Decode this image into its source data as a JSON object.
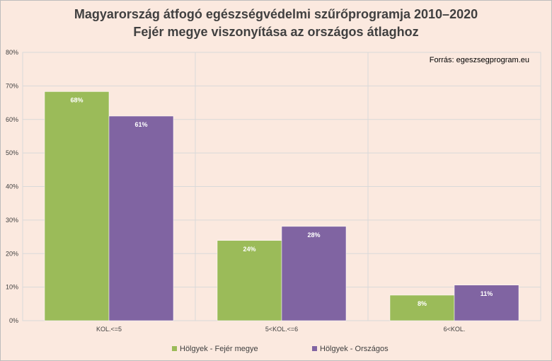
{
  "title_line1": "Magyarország átfogó egészségvédelmi szűrőprogramja 2010–2020",
  "title_line2": "Fejér megye viszonyítása az országos átlaghoz",
  "source": "Forrás: egeszsegprogram.eu",
  "chart_data": {
    "type": "bar",
    "categories": [
      "KOL.<=5",
      "5<KOL.<=6",
      "6<KOL."
    ],
    "series": [
      {
        "name": "Hölgyek - Fejér megye",
        "values": [
          68.3,
          23.9,
          7.6
        ],
        "labels": [
          "68%",
          "24%",
          "8%"
        ],
        "color": "#9bbb59"
      },
      {
        "name": "Hölgyek - Országos",
        "values": [
          61.0,
          28.1,
          10.6
        ],
        "labels": [
          "61%",
          "28%",
          "11%"
        ],
        "color": "#8064a2"
      }
    ],
    "ylim": [
      0,
      80
    ],
    "yticks": [
      0,
      10,
      20,
      30,
      40,
      50,
      60,
      70,
      80
    ],
    "ytick_labels": [
      "0%",
      "10%",
      "20%",
      "30%",
      "40%",
      "50%",
      "60%",
      "70%",
      "80%"
    ],
    "grid": true,
    "legend": "bottom"
  }
}
